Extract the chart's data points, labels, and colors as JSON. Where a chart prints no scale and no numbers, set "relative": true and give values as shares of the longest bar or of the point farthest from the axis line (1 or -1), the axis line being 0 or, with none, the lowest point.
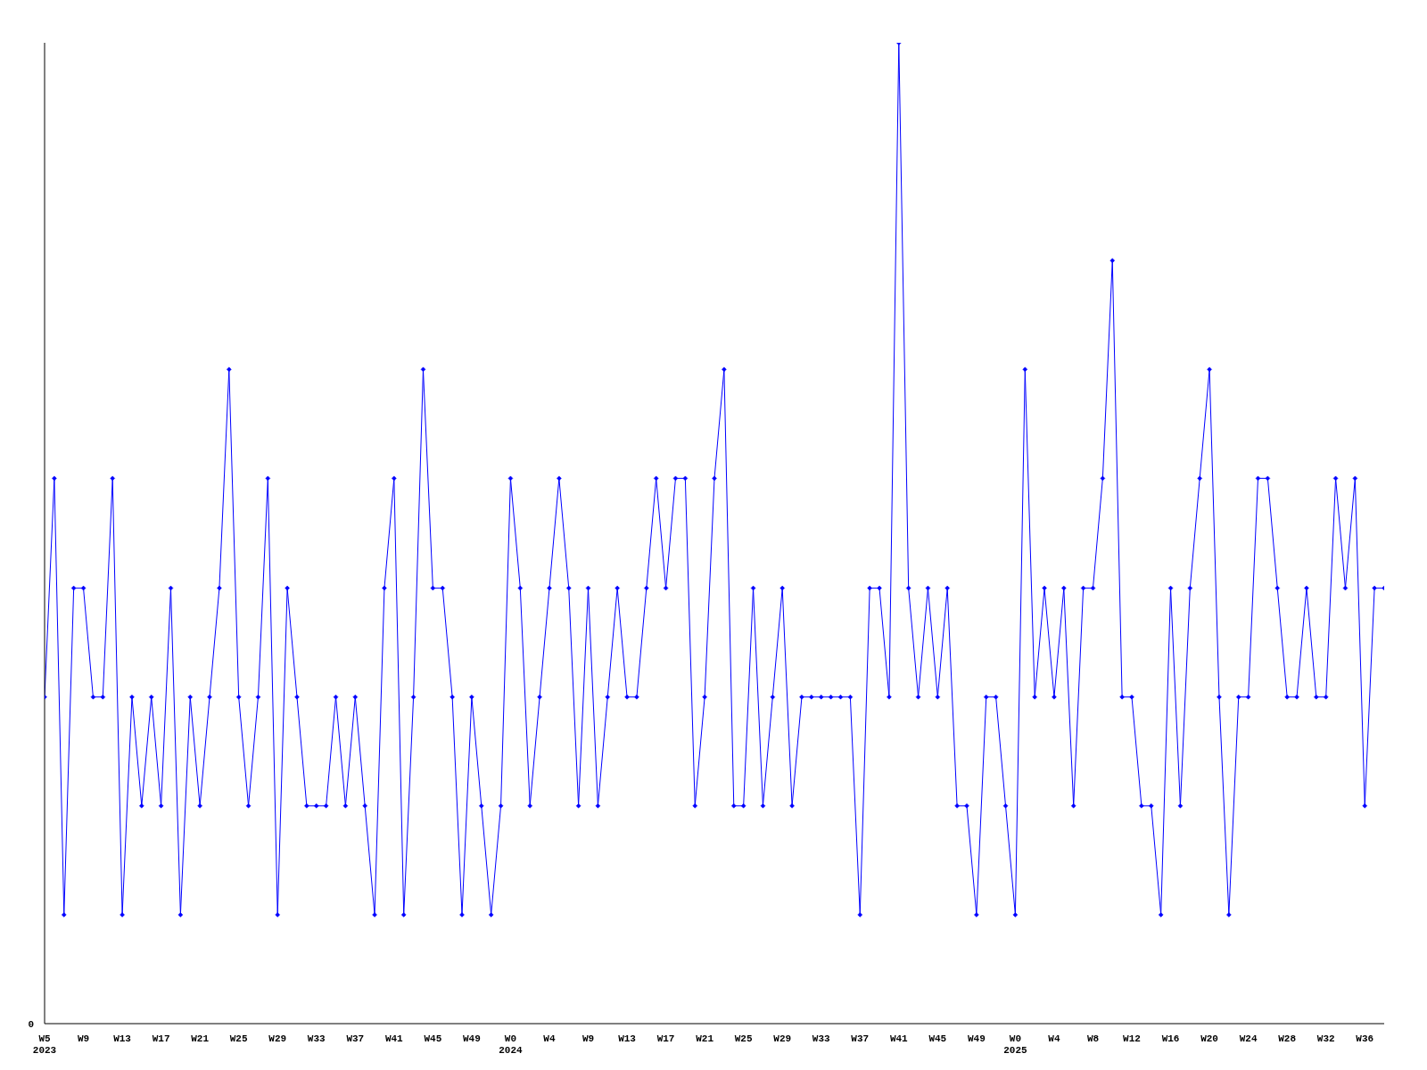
{
  "chart_data": {
    "type": "line",
    "relative": true,
    "annotations": [
      "0"
    ],
    "marker": "diamond",
    "grid": false,
    "legend": false,
    "categories": [
      "W5\n2023",
      null,
      null,
      null,
      "W9",
      null,
      null,
      null,
      "W13",
      null,
      null,
      null,
      "W17",
      null,
      null,
      null,
      "W21",
      null,
      null,
      null,
      "W25",
      null,
      null,
      null,
      "W29",
      null,
      null,
      null,
      "W33",
      null,
      null,
      null,
      "W37",
      null,
      null,
      null,
      "W41",
      null,
      null,
      null,
      "W45",
      null,
      null,
      null,
      "W49",
      null,
      null,
      null,
      "W0\n2024",
      null,
      null,
      null,
      "W4",
      null,
      null,
      null,
      "W9",
      null,
      null,
      null,
      "W13",
      null,
      null,
      null,
      "W17",
      null,
      null,
      null,
      "W21",
      null,
      null,
      null,
      "W25",
      null,
      null,
      null,
      "W29",
      null,
      null,
      null,
      "W33",
      null,
      null,
      null,
      "W37",
      null,
      null,
      null,
      "W41",
      null,
      null,
      null,
      "W45",
      null,
      null,
      null,
      "W49",
      null,
      null,
      null,
      "W0\n2025",
      null,
      null,
      null,
      "W4",
      null,
      null,
      null,
      "W8",
      null,
      null,
      null,
      "W12",
      null,
      null,
      null,
      "W16",
      null,
      null,
      null,
      "W20",
      null,
      null,
      null,
      "W24",
      null,
      null,
      null,
      "W28",
      null,
      null,
      null,
      "W32",
      null,
      null,
      null,
      "W36",
      null,
      null
    ],
    "series": [
      {
        "color": "#0000ff",
        "values": [
          0.333,
          0.556,
          0.111,
          0.444,
          0.444,
          0.333,
          0.333,
          0.556,
          0.111,
          0.333,
          0.222,
          0.333,
          0.222,
          0.444,
          0.111,
          0.333,
          0.222,
          0.333,
          0.444,
          0.667,
          0.333,
          0.222,
          0.333,
          0.556,
          0.111,
          0.444,
          0.333,
          0.222,
          0.222,
          0.222,
          0.333,
          0.222,
          0.333,
          0.222,
          0.111,
          0.444,
          0.556,
          0.111,
          0.333,
          0.667,
          0.444,
          0.444,
          0.333,
          0.111,
          0.333,
          0.222,
          0.111,
          0.222,
          0.556,
          0.444,
          0.222,
          0.333,
          0.444,
          0.556,
          0.444,
          0.222,
          0.444,
          0.222,
          0.333,
          0.444,
          0.333,
          0.333,
          0.444,
          0.556,
          0.444,
          0.556,
          0.556,
          0.222,
          0.333,
          0.556,
          0.667,
          0.222,
          0.222,
          0.444,
          0.222,
          0.333,
          0.444,
          0.222,
          0.333,
          0.333,
          0.333,
          0.333,
          0.333,
          0.333,
          0.111,
          0.444,
          0.444,
          0.333,
          1,
          0.444,
          0.333,
          0.444,
          0.333,
          0.444,
          0.222,
          0.222,
          0.111,
          0.333,
          0.333,
          0.222,
          0.111,
          0.667,
          0.333,
          0.444,
          0.333,
          0.444,
          0.222,
          0.444,
          0.444,
          0.556,
          0.778,
          0.333,
          0.333,
          0.222,
          0.222,
          0.111,
          0.444,
          0.222,
          0.444,
          0.556,
          0.667,
          0.333,
          0.111,
          0.333,
          0.333,
          0.556,
          0.556,
          0.444,
          0.333,
          0.333,
          0.444,
          0.333,
          0.333,
          0.556,
          0.444,
          0.556,
          0.222,
          0.444,
          0.444
        ]
      }
    ]
  }
}
